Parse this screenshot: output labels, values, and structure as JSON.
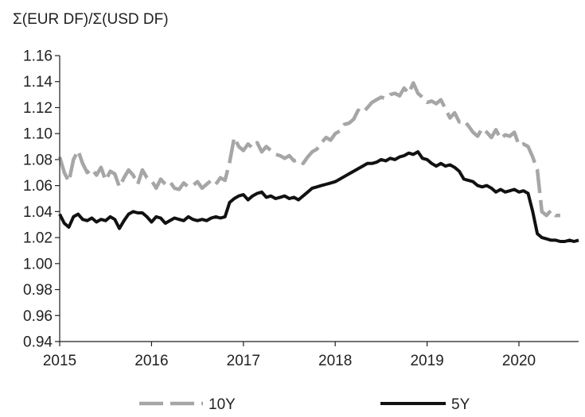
{
  "chart_data": {
    "type": "line",
    "title": "",
    "ylabel": "Σ(EUR DF)/Σ(USD DF)",
    "xlabel": "",
    "ylim": [
      0.94,
      1.16
    ],
    "xlim": [
      2015.0,
      2020.65
    ],
    "yticks": [
      "0.94",
      "0.96",
      "0.98",
      "1.00",
      "1.02",
      "1.04",
      "1.06",
      "1.08",
      "1.10",
      "1.12",
      "1.14",
      "1.16"
    ],
    "xticks": [
      "2015",
      "2016",
      "2017",
      "2018",
      "2019",
      "2020"
    ],
    "grid": false,
    "legend": "bottom",
    "series": [
      {
        "name": "10Y",
        "color": "#a6a6a6",
        "style": "dashed",
        "x": [
          2015.0,
          2015.05,
          2015.1,
          2015.15,
          2015.2,
          2015.25,
          2015.3,
          2015.35,
          2015.4,
          2015.45,
          2015.5,
          2015.55,
          2015.6,
          2015.65,
          2015.7,
          2015.75,
          2015.8,
          2015.85,
          2015.9,
          2015.95,
          2016.0,
          2016.05,
          2016.1,
          2016.15,
          2016.2,
          2016.25,
          2016.3,
          2016.35,
          2016.4,
          2016.45,
          2016.5,
          2016.55,
          2016.6,
          2016.65,
          2016.7,
          2016.75,
          2016.8,
          2016.85,
          2016.9,
          2016.95,
          2017.0,
          2017.05,
          2017.1,
          2017.15,
          2017.2,
          2017.25,
          2017.3,
          2017.35,
          2017.4,
          2017.45,
          2017.5,
          2017.55,
          2017.6,
          2017.65,
          2017.7,
          2017.75,
          2017.8,
          2017.85,
          2017.9,
          2017.95,
          2018.0,
          2018.05,
          2018.1,
          2018.15,
          2018.2,
          2018.25,
          2018.3,
          2018.35,
          2018.4,
          2018.45,
          2018.5,
          2018.55,
          2018.6,
          2018.65,
          2018.7,
          2018.75,
          2018.8,
          2018.85,
          2018.9,
          2018.95,
          2019.0,
          2019.05,
          2019.1,
          2019.15,
          2019.2,
          2019.25,
          2019.3,
          2019.35,
          2019.4,
          2019.45,
          2019.5,
          2019.55,
          2019.6,
          2019.65,
          2019.7,
          2019.75,
          2019.8,
          2019.85,
          2019.9,
          2019.95,
          2020.0,
          2020.05,
          2020.1,
          2020.15,
          2020.2,
          2020.25,
          2020.3,
          2020.35,
          2020.4,
          2020.45
        ],
        "values": [
          1.082,
          1.07,
          1.063,
          1.08,
          1.087,
          1.077,
          1.07,
          1.073,
          1.068,
          1.074,
          1.064,
          1.071,
          1.069,
          1.059,
          1.066,
          1.072,
          1.068,
          1.061,
          1.072,
          1.066,
          1.064,
          1.058,
          1.065,
          1.061,
          1.063,
          1.058,
          1.057,
          1.062,
          1.059,
          1.06,
          1.063,
          1.058,
          1.061,
          1.064,
          1.061,
          1.066,
          1.064,
          1.078,
          1.097,
          1.09,
          1.087,
          1.092,
          1.089,
          1.093,
          1.086,
          1.09,
          1.087,
          1.084,
          1.083,
          1.081,
          1.083,
          1.079,
          1.08,
          1.077,
          1.082,
          1.086,
          1.088,
          1.093,
          1.097,
          1.095,
          1.1,
          1.102,
          1.107,
          1.108,
          1.111,
          1.118,
          1.116,
          1.12,
          1.124,
          1.126,
          1.128,
          1.127,
          1.13,
          1.131,
          1.129,
          1.135,
          1.131,
          1.139,
          1.131,
          1.128,
          1.124,
          1.125,
          1.123,
          1.126,
          1.119,
          1.112,
          1.116,
          1.109,
          1.11,
          1.106,
          1.101,
          1.098,
          1.104,
          1.101,
          1.097,
          1.103,
          1.096,
          1.099,
          1.098,
          1.101,
          1.091,
          1.092,
          1.09,
          1.082,
          1.072,
          1.04,
          1.037,
          1.041,
          1.037,
          1.037
        ]
      },
      {
        "name": "5Y",
        "color": "#111111",
        "style": "solid",
        "x": [
          2015.0,
          2015.05,
          2015.1,
          2015.15,
          2015.2,
          2015.25,
          2015.3,
          2015.35,
          2015.4,
          2015.45,
          2015.5,
          2015.55,
          2015.6,
          2015.65,
          2015.7,
          2015.75,
          2015.8,
          2015.85,
          2015.9,
          2015.95,
          2016.0,
          2016.05,
          2016.1,
          2016.15,
          2016.2,
          2016.25,
          2016.3,
          2016.35,
          2016.4,
          2016.45,
          2016.5,
          2016.55,
          2016.6,
          2016.65,
          2016.7,
          2016.75,
          2016.8,
          2016.85,
          2016.9,
          2016.95,
          2017.0,
          2017.05,
          2017.1,
          2017.15,
          2017.2,
          2017.25,
          2017.3,
          2017.35,
          2017.4,
          2017.45,
          2017.5,
          2017.55,
          2017.6,
          2017.65,
          2017.7,
          2017.75,
          2017.8,
          2017.85,
          2017.9,
          2017.95,
          2018.0,
          2018.05,
          2018.1,
          2018.15,
          2018.2,
          2018.25,
          2018.3,
          2018.35,
          2018.4,
          2018.45,
          2018.5,
          2018.55,
          2018.6,
          2018.65,
          2018.7,
          2018.75,
          2018.8,
          2018.85,
          2018.9,
          2018.95,
          2019.0,
          2019.05,
          2019.1,
          2019.15,
          2019.2,
          2019.25,
          2019.3,
          2019.35,
          2019.4,
          2019.45,
          2019.5,
          2019.55,
          2019.6,
          2019.65,
          2019.7,
          2019.75,
          2019.8,
          2019.85,
          2019.9,
          2019.95,
          2020.0,
          2020.05,
          2020.1,
          2020.15,
          2020.2,
          2020.25,
          2020.3,
          2020.35,
          2020.4,
          2020.45,
          2020.5,
          2020.55,
          2020.6,
          2020.65
        ],
        "values": [
          1.038,
          1.031,
          1.028,
          1.036,
          1.038,
          1.034,
          1.033,
          1.035,
          1.032,
          1.034,
          1.033,
          1.036,
          1.034,
          1.027,
          1.033,
          1.038,
          1.04,
          1.039,
          1.039,
          1.036,
          1.032,
          1.036,
          1.035,
          1.031,
          1.033,
          1.035,
          1.034,
          1.033,
          1.036,
          1.034,
          1.033,
          1.034,
          1.033,
          1.035,
          1.036,
          1.035,
          1.036,
          1.047,
          1.05,
          1.052,
          1.053,
          1.049,
          1.052,
          1.054,
          1.055,
          1.051,
          1.052,
          1.05,
          1.051,
          1.052,
          1.05,
          1.051,
          1.049,
          1.052,
          1.055,
          1.058,
          1.059,
          1.06,
          1.061,
          1.062,
          1.063,
          1.065,
          1.067,
          1.069,
          1.071,
          1.073,
          1.075,
          1.077,
          1.077,
          1.078,
          1.08,
          1.079,
          1.081,
          1.08,
          1.082,
          1.083,
          1.085,
          1.084,
          1.086,
          1.081,
          1.08,
          1.077,
          1.075,
          1.077,
          1.075,
          1.076,
          1.074,
          1.071,
          1.065,
          1.064,
          1.063,
          1.06,
          1.059,
          1.06,
          1.058,
          1.055,
          1.057,
          1.055,
          1.056,
          1.057,
          1.055,
          1.056,
          1.054,
          1.04,
          1.023,
          1.02,
          1.019,
          1.018,
          1.018,
          1.017,
          1.017,
          1.018,
          1.017,
          1.018
        ]
      }
    ]
  }
}
